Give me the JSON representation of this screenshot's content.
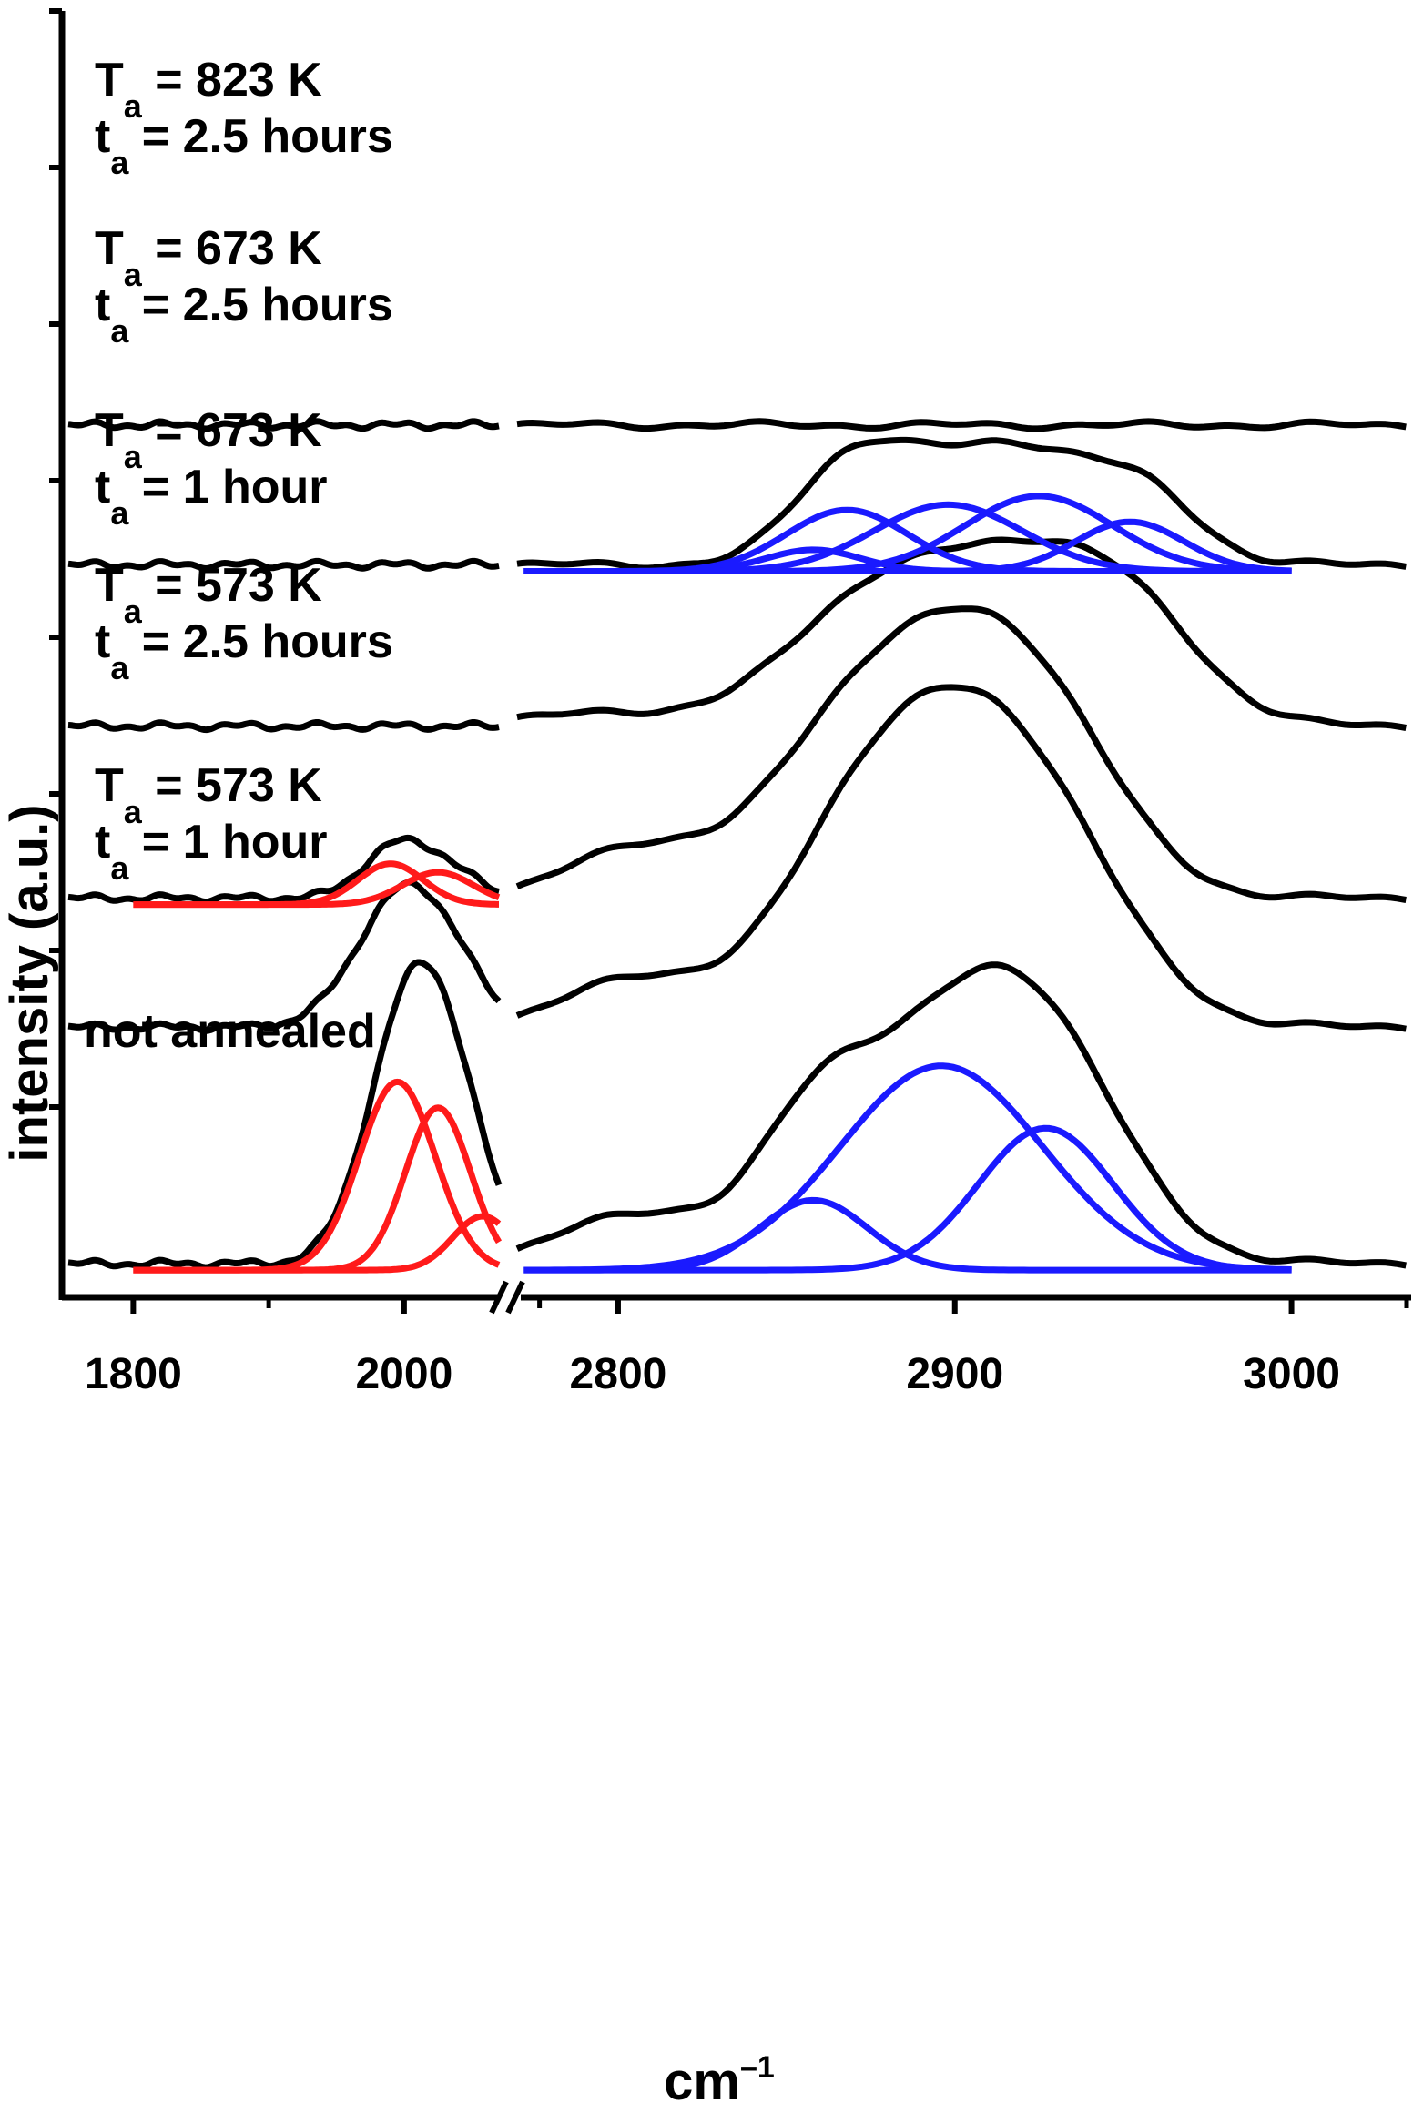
{
  "chart_data": {
    "type": "line",
    "title": "",
    "xlabel": "cm",
    "xlabel_superscript": "–1",
    "ylabel": "intensity (a.u.)",
    "x_axis_break": true,
    "x_segments": [
      {
        "range": [
          1750,
          2070
        ],
        "ticks": [
          1800,
          2000
        ],
        "minor_ticks": [
          1900,
          2100
        ]
      },
      {
        "range": [
          2770,
          3035
        ],
        "ticks": [
          2800,
          2900,
          3000
        ],
        "minor_ticks": []
      }
    ],
    "colors": {
      "measured": "#000000",
      "fit_low": "#ff1a1a",
      "fit_high": "#1a1aff"
    },
    "series": [
      {
        "name": "not annealed",
        "offset": 0.0,
        "label_lines": [
          {
            "text": "not annealed"
          }
        ],
        "seg1_peaks": [
          [
            1995,
            1.75,
            28
          ],
          [
            2025,
            1.51,
            24
          ],
          [
            2058,
            0.5,
            22
          ]
        ],
        "seg2_peaks": [
          [
            2805,
            0.45,
            22
          ],
          [
            2858,
            0.78,
            16
          ],
          [
            2896,
            1.9,
            32
          ],
          [
            2927,
            1.32,
            24
          ]
        ],
        "fits_seg1": [
          [
            1995,
            1.75,
            28
          ],
          [
            2025,
            1.51,
            24
          ],
          [
            2058,
            0.5,
            22
          ]
        ],
        "fits_seg2": [
          [
            2858,
            0.65,
            16
          ],
          [
            2896,
            1.9,
            30
          ],
          [
            2927,
            1.32,
            20
          ]
        ]
      },
      {
        "name": "573 K, 1 hour",
        "offset": 2.2,
        "label_lines": [
          {
            "T": "T",
            "Tsub": "a",
            "value": " = 573 K"
          },
          {
            "T": "t",
            "Tsub": "a",
            "value": " = 1 hour"
          }
        ],
        "seg1_peaks": [
          [
            1990,
            0.9,
            32
          ],
          [
            2025,
            0.65,
            30
          ]
        ],
        "seg2_peaks": [
          [
            2805,
            0.45,
            20
          ],
          [
            2870,
            1.1,
            24
          ],
          [
            2898,
            1.85,
            30
          ],
          [
            2925,
            1.28,
            26
          ]
        ],
        "fits_seg1": [],
        "fits_seg2": []
      },
      {
        "name": "573 K, 2.5 hours",
        "offset": 3.4,
        "label_lines": [
          {
            "T": "T",
            "Tsub": "a",
            "value": " = 573 K"
          },
          {
            "T": "t",
            "Tsub": "a",
            "value": " = 2.5 hours"
          }
        ],
        "seg1_peaks": [
          [
            1990,
            0.38,
            24
          ],
          [
            2025,
            0.3,
            26
          ]
        ],
        "seg2_peaks": [
          [
            2805,
            0.45,
            20
          ],
          [
            2868,
            1.0,
            26
          ],
          [
            2896,
            1.5,
            30
          ],
          [
            2925,
            1.25,
            24
          ]
        ],
        "fits_seg1": [
          [
            1990,
            0.38,
            24
          ],
          [
            2025,
            0.3,
            26
          ]
        ],
        "fits_seg2": []
      },
      {
        "name": "673 K, 1 hour",
        "offset": 5.0,
        "label_lines": [
          {
            "T": "T",
            "Tsub": "a",
            "value": " = 673 K"
          },
          {
            "T": "t",
            "Tsub": "a",
            "value": " = 1 hour"
          }
        ],
        "seg1_peaks": [],
        "seg2_peaks": [
          [
            2800,
            0.12,
            30
          ],
          [
            2872,
            0.8,
            24
          ],
          [
            2905,
            0.9,
            30
          ],
          [
            2932,
            0.85,
            24
          ],
          [
            2958,
            0.55,
            20
          ]
        ],
        "fits_seg1": [],
        "fits_seg2": []
      },
      {
        "name": "673 K, 2.5 hours",
        "offset": 6.5,
        "label_lines": [
          {
            "T": "T",
            "Tsub": "a",
            "value": " = 673 K"
          },
          {
            "T": "t",
            "Tsub": "a",
            "value": " = 2.5 hours"
          }
        ],
        "seg1_peaks": [],
        "seg2_peaks": [
          [
            2858,
            0.2,
            14
          ],
          [
            2872,
            0.72,
            16
          ],
          [
            2900,
            0.62,
            22
          ],
          [
            2928,
            0.74,
            22
          ],
          [
            2958,
            0.48,
            16
          ]
        ],
        "fits_seg1": [],
        "fits_seg2": [
          [
            2858,
            0.2,
            14
          ],
          [
            2868,
            0.57,
            18
          ],
          [
            2898,
            0.62,
            22
          ],
          [
            2925,
            0.7,
            22
          ],
          [
            2952,
            0.46,
            16
          ]
        ]
      },
      {
        "name": "823 K, 2.5 hours",
        "offset": 7.8,
        "label_lines": [
          {
            "T": "T",
            "Tsub": "a",
            "value": " = 823 K"
          },
          {
            "T": "t",
            "Tsub": "a",
            "value": " = 2.5 hours"
          }
        ],
        "seg1_peaks": [],
        "seg2_peaks": [],
        "fits_seg1": [],
        "fits_seg2": []
      }
    ],
    "y_range": [
      -0.2,
      11.5
    ]
  }
}
